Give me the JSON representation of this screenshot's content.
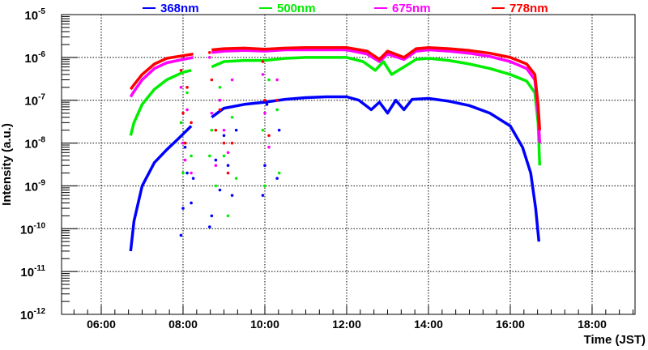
{
  "chart_data": {
    "type": "scatter",
    "title": "",
    "xlabel": "Time (JST)",
    "ylabel": "Intensity (a.u.)",
    "xlim": [
      5.03,
      19.05
    ],
    "ylim_log10": [
      -12,
      -5
    ],
    "yscale": "log",
    "grid": true,
    "legend_placement": "top",
    "x_ticks": [
      {
        "value": 6,
        "label": "06:00"
      },
      {
        "value": 8,
        "label": "08:00"
      },
      {
        "value": 10,
        "label": "10:00"
      },
      {
        "value": 12,
        "label": "12:00"
      },
      {
        "value": 14,
        "label": "14:00"
      },
      {
        "value": 16,
        "label": "16:00"
      },
      {
        "value": 18,
        "label": "18:00"
      }
    ],
    "y_ticks": [
      {
        "exp": -5,
        "base": "10",
        "sup": "-5"
      },
      {
        "exp": -6,
        "base": "10",
        "sup": "-6"
      },
      {
        "exp": -7,
        "base": "10",
        "sup": "-7"
      },
      {
        "exp": -8,
        "base": "10",
        "sup": "-8"
      },
      {
        "exp": -9,
        "base": "10",
        "sup": "-9"
      },
      {
        "exp": -10,
        "base": "10",
        "sup": "-10"
      },
      {
        "exp": -11,
        "base": "10",
        "sup": "-11"
      },
      {
        "exp": -12,
        "base": "10",
        "sup": "-12"
      }
    ],
    "series": [
      {
        "name": "368nm",
        "color": "#0000ff",
        "curve": [
          [
            6.72,
            3e-11
          ],
          [
            6.8,
            1.5e-10
          ],
          [
            7.0,
            1e-09
          ],
          [
            7.3,
            3.5e-09
          ],
          [
            7.6,
            7e-09
          ],
          [
            7.9,
            1.3e-08
          ],
          [
            8.2,
            2.5e-08
          ],
          [
            8.7,
            4e-08
          ],
          [
            9.0,
            6.5e-08
          ],
          [
            9.5,
            8e-08
          ],
          [
            10.0,
            9e-08
          ],
          [
            10.5,
            1.05e-07
          ],
          [
            11.0,
            1.15e-07
          ],
          [
            11.5,
            1.2e-07
          ],
          [
            12.0,
            1.2e-07
          ],
          [
            12.3,
            1e-07
          ],
          [
            12.6,
            6e-08
          ],
          [
            12.8,
            9e-08
          ],
          [
            13.0,
            5e-08
          ],
          [
            13.2,
            1e-07
          ],
          [
            13.4,
            6e-08
          ],
          [
            13.6,
            1.05e-07
          ],
          [
            14.0,
            1.1e-07
          ],
          [
            14.5,
            9.5e-08
          ],
          [
            15.0,
            7.5e-08
          ],
          [
            15.5,
            5e-08
          ],
          [
            16.0,
            2.5e-08
          ],
          [
            16.3,
            8e-09
          ],
          [
            16.5,
            2e-09
          ],
          [
            16.62,
            3e-10
          ],
          [
            16.7,
            5e-11
          ]
        ],
        "scatter": [
          [
            7.95,
            7e-11
          ],
          [
            8.0,
            3e-10
          ],
          [
            8.05,
            8e-09
          ],
          [
            8.1,
            2e-09
          ],
          [
            8.2,
            4e-10
          ],
          [
            8.25,
            1.5e-09
          ],
          [
            8.65,
            1.1e-10
          ],
          [
            8.7,
            2e-10
          ],
          [
            8.8,
            4e-09
          ],
          [
            8.9,
            8e-10
          ],
          [
            9.0,
            1.5e-08
          ],
          [
            9.1,
            3e-09
          ],
          [
            9.2,
            6e-10
          ],
          [
            9.3,
            2e-08
          ],
          [
            9.95,
            6e-10
          ],
          [
            10.0,
            3e-09
          ],
          [
            10.05,
            8e-08
          ],
          [
            10.3,
            1.5e-09
          ],
          [
            10.35,
            2e-08
          ]
        ]
      },
      {
        "name": "500nm",
        "color": "#00ee00",
        "curve": [
          [
            6.72,
            1.5e-08
          ],
          [
            6.8,
            3e-08
          ],
          [
            7.0,
            8e-08
          ],
          [
            7.3,
            1.8e-07
          ],
          [
            7.6,
            3e-07
          ],
          [
            8.0,
            4.5e-07
          ],
          [
            8.2,
            5e-07
          ],
          [
            8.7,
            6e-07
          ],
          [
            9.0,
            8e-07
          ],
          [
            9.5,
            8.5e-07
          ],
          [
            10.0,
            8.5e-07
          ],
          [
            10.5,
            9.5e-07
          ],
          [
            11.0,
            1e-06
          ],
          [
            12.0,
            1e-06
          ],
          [
            12.4,
            8e-07
          ],
          [
            12.7,
            5e-07
          ],
          [
            12.9,
            8e-07
          ],
          [
            13.1,
            4e-07
          ],
          [
            13.4,
            6e-07
          ],
          [
            13.7,
            9e-07
          ],
          [
            14.0,
            9.5e-07
          ],
          [
            14.5,
            8.5e-07
          ],
          [
            15.0,
            7e-07
          ],
          [
            15.5,
            5.5e-07
          ],
          [
            16.0,
            4e-07
          ],
          [
            16.4,
            2.8e-07
          ],
          [
            16.6,
            1.5e-07
          ],
          [
            16.68,
            3e-08
          ],
          [
            16.72,
            3e-09
          ]
        ],
        "scatter": [
          [
            7.95,
            3e-08
          ],
          [
            8.0,
            2e-09
          ],
          [
            8.1,
            1.5e-07
          ],
          [
            8.2,
            5e-09
          ],
          [
            8.65,
            5e-09
          ],
          [
            8.7,
            2e-08
          ],
          [
            8.8,
            1e-09
          ],
          [
            8.9,
            2e-07
          ],
          [
            9.0,
            5e-09
          ],
          [
            9.1,
            2e-10
          ],
          [
            9.2,
            4e-08
          ],
          [
            9.3,
            1.5e-09
          ],
          [
            9.95,
            2e-08
          ],
          [
            10.0,
            1e-09
          ],
          [
            10.1,
            3e-07
          ],
          [
            10.35,
            2e-09
          ],
          [
            10.3,
            6e-08
          ]
        ]
      },
      {
        "name": "675nm",
        "color": "#ff00ff",
        "curve": [
          [
            6.72,
            1.2e-07
          ],
          [
            6.8,
            1.6e-07
          ],
          [
            7.0,
            3e-07
          ],
          [
            7.3,
            5.5e-07
          ],
          [
            7.6,
            7.5e-07
          ],
          [
            8.0,
            9e-07
          ],
          [
            8.25,
            1e-06
          ],
          [
            8.7,
            1.3e-06
          ],
          [
            9.0,
            1.4e-06
          ],
          [
            9.5,
            1.45e-06
          ],
          [
            10.0,
            1.4e-06
          ],
          [
            10.5,
            1.5e-06
          ],
          [
            11.0,
            1.5e-06
          ],
          [
            12.0,
            1.5e-06
          ],
          [
            12.5,
            1.2e-06
          ],
          [
            12.8,
            8e-07
          ],
          [
            13.0,
            1.2e-06
          ],
          [
            13.4,
            9e-07
          ],
          [
            13.7,
            1.4e-06
          ],
          [
            14.0,
            1.5e-06
          ],
          [
            14.5,
            1.4e-06
          ],
          [
            15.0,
            1.25e-06
          ],
          [
            15.5,
            1.05e-06
          ],
          [
            16.0,
            8e-07
          ],
          [
            16.4,
            5.5e-07
          ],
          [
            16.6,
            3e-07
          ],
          [
            16.68,
            5e-08
          ],
          [
            16.72,
            1e-08
          ]
        ],
        "scatter": [
          [
            7.95,
            2e-07
          ],
          [
            8.0,
            1e-08
          ],
          [
            8.05,
            4e-09
          ],
          [
            8.1,
            6e-08
          ],
          [
            8.2,
            2e-09
          ],
          [
            8.65,
            1e-06
          ],
          [
            8.7,
            5e-08
          ],
          [
            8.8,
            3e-09
          ],
          [
            8.9,
            1e-07
          ],
          [
            9.0,
            2e-08
          ],
          [
            9.1,
            6e-09
          ],
          [
            9.2,
            3e-07
          ],
          [
            9.95,
            4e-07
          ],
          [
            10.0,
            5e-08
          ],
          [
            10.1,
            8e-09
          ],
          [
            10.3,
            3e-07
          ]
        ]
      },
      {
        "name": "778nm",
        "color": "#ff0000",
        "curve": [
          [
            6.72,
            1.8e-07
          ],
          [
            6.8,
            2.3e-07
          ],
          [
            7.0,
            4e-07
          ],
          [
            7.3,
            7e-07
          ],
          [
            7.6,
            9.5e-07
          ],
          [
            8.0,
            1.1e-06
          ],
          [
            8.25,
            1.2e-06
          ],
          [
            8.7,
            1.5e-06
          ],
          [
            9.0,
            1.6e-06
          ],
          [
            9.5,
            1.65e-06
          ],
          [
            10.0,
            1.55e-06
          ],
          [
            10.5,
            1.65e-06
          ],
          [
            11.0,
            1.7e-06
          ],
          [
            12.0,
            1.7e-06
          ],
          [
            12.5,
            1.4e-06
          ],
          [
            12.8,
            9e-07
          ],
          [
            13.0,
            1.4e-06
          ],
          [
            13.4,
            1e-06
          ],
          [
            13.7,
            1.6e-06
          ],
          [
            14.0,
            1.7e-06
          ],
          [
            14.5,
            1.6e-06
          ],
          [
            15.0,
            1.45e-06
          ],
          [
            15.5,
            1.25e-06
          ],
          [
            16.0,
            1e-06
          ],
          [
            16.4,
            7e-07
          ],
          [
            16.6,
            4e-07
          ],
          [
            16.68,
            8e-08
          ],
          [
            16.72,
            2e-08
          ]
        ],
        "scatter": [
          [
            7.95,
            5e-07
          ],
          [
            8.0,
            5e-08
          ],
          [
            8.05,
            1e-08
          ],
          [
            8.1,
            2e-07
          ],
          [
            8.2,
            3e-08
          ],
          [
            8.65,
            1.3e-06
          ],
          [
            8.7,
            3e-07
          ],
          [
            8.8,
            2e-08
          ],
          [
            8.9,
            6e-08
          ],
          [
            9.0,
            1e-08
          ],
          [
            9.1,
            2e-09
          ],
          [
            9.2,
            1e-08
          ],
          [
            9.95,
            8e-07
          ],
          [
            10.0,
            1e-07
          ],
          [
            10.1,
            1.5e-08
          ],
          [
            10.3,
            1e-07
          ]
        ]
      }
    ]
  }
}
